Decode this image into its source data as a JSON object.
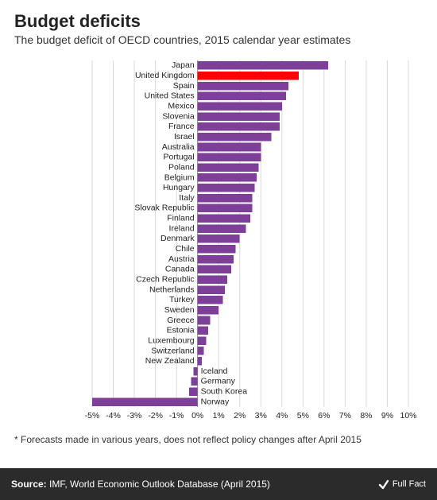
{
  "title": "Budget deficits",
  "subtitle": "The budget deficit of OECD countries, 2015 calendar year estimates",
  "footnote": "* Forecasts made in various years, does not reflect policy changes after April 2015",
  "source": {
    "label": "Source: ",
    "text": "IMF, World Economic Outlook Database (April 2015)",
    "brand": "Full Fact"
  },
  "chart": {
    "type": "bar-horizontal",
    "xlim": [
      -5,
      10
    ],
    "xtick_step": 1,
    "xtick_suffix": "%",
    "background_color": "#ffffff",
    "grid_color": "#d9d9d9",
    "axis_color": "#888888",
    "bar_color": "#7e3f98",
    "highlight_color": "#ff0000",
    "label_fontsize": 10.5,
    "bar_gap_ratio": 0.18,
    "series": [
      {
        "label": "Japan",
        "value": 6.2
      },
      {
        "label": "United Kingdom",
        "value": 4.8,
        "highlight": true
      },
      {
        "label": "Spain",
        "value": 4.3
      },
      {
        "label": "United States",
        "value": 4.2
      },
      {
        "label": "Mexico",
        "value": 4.0
      },
      {
        "label": "Slovenia",
        "value": 3.9
      },
      {
        "label": "France",
        "value": 3.9
      },
      {
        "label": "Israel",
        "value": 3.5
      },
      {
        "label": "Australia",
        "value": 3.0
      },
      {
        "label": "Portugal",
        "value": 3.0
      },
      {
        "label": "Poland",
        "value": 2.9
      },
      {
        "label": "Belgium",
        "value": 2.8
      },
      {
        "label": "Hungary",
        "value": 2.7
      },
      {
        "label": "Italy",
        "value": 2.6
      },
      {
        "label": "Slovak Republic",
        "value": 2.6
      },
      {
        "label": "Finland",
        "value": 2.5
      },
      {
        "label": "Ireland",
        "value": 2.3
      },
      {
        "label": "Denmark",
        "value": 2.0
      },
      {
        "label": "Chile",
        "value": 1.8
      },
      {
        "label": "Austria",
        "value": 1.7
      },
      {
        "label": "Canada",
        "value": 1.6
      },
      {
        "label": "Czech Republic",
        "value": 1.4
      },
      {
        "label": "Netherlands",
        "value": 1.3
      },
      {
        "label": "Turkey",
        "value": 1.2
      },
      {
        "label": "Sweden",
        "value": 1.0
      },
      {
        "label": "Greece",
        "value": 0.6
      },
      {
        "label": "Estonia",
        "value": 0.5
      },
      {
        "label": "Luxembourg",
        "value": 0.4
      },
      {
        "label": "Switzerland",
        "value": 0.3
      },
      {
        "label": "New Zealand",
        "value": 0.2
      },
      {
        "label": "Iceland",
        "value": -0.2
      },
      {
        "label": "Germany",
        "value": -0.3
      },
      {
        "label": "South Korea",
        "value": -0.4
      },
      {
        "label": "Norway",
        "value": -5.0
      }
    ]
  }
}
